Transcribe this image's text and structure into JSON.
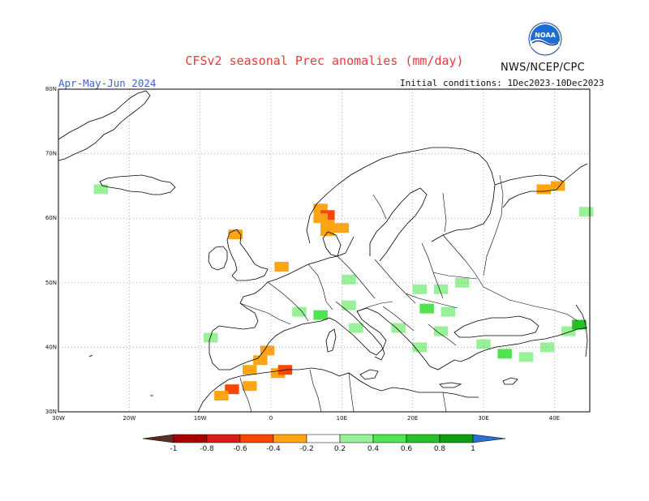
{
  "header": {
    "title": "CFSv2 seasonal Prec anomalies (mm/day)",
    "agency": "NWS/NCEP/CPC",
    "logo_text": "NOAA",
    "season": "Apr-May-Jun 2024",
    "initial_conditions": "Initial conditions: 1Dec2023-10Dec2023"
  },
  "axes": {
    "lat_labels": [
      {
        "lat": 80,
        "label": "80N"
      },
      {
        "lat": 70,
        "label": "70N"
      },
      {
        "lat": 60,
        "label": "60N"
      },
      {
        "lat": 50,
        "label": "50N"
      },
      {
        "lat": 40,
        "label": "40N"
      },
      {
        "lat": 30,
        "label": "30N"
      }
    ],
    "lon_labels": [
      {
        "lon": -30,
        "label": "30W"
      },
      {
        "lon": -20,
        "label": "20W"
      },
      {
        "lon": -10,
        "label": "10W"
      },
      {
        "lon": 0,
        "label": "0"
      },
      {
        "lon": 10,
        "label": "10E"
      },
      {
        "lon": 20,
        "label": "20E"
      },
      {
        "lon": 30,
        "label": "30E"
      },
      {
        "lon": 40,
        "label": "40E"
      }
    ],
    "lon_range": [
      -30,
      45
    ],
    "lat_range": [
      30,
      80
    ],
    "grid": "dotted"
  },
  "colorbar": {
    "labels": [
      "-1",
      "-0.8",
      "-0.6",
      "-0.4",
      "-0.2",
      "0.2",
      "0.4",
      "0.6",
      "0.8",
      "1"
    ],
    "colors": [
      "#5a2e22",
      "#a80000",
      "#d61c1c",
      "#ff4500",
      "#ffa514",
      "#ffffff",
      "#98f098",
      "#50e450",
      "#28c028",
      "#0f9e0f",
      "#2a6ed8"
    ]
  },
  "chart_data": {
    "type": "heatmap",
    "title": "CFSv2 seasonal Prec anomalies (mm/day)",
    "subtitle": "Apr-May-Jun 2024",
    "units": "mm/day",
    "cells": [
      {
        "lon": 7,
        "lat": 61.5,
        "value": -0.3
      },
      {
        "lon": 8,
        "lat": 60.5,
        "value": -0.5
      },
      {
        "lon": 7,
        "lat": 60,
        "value": -0.3
      },
      {
        "lon": 8,
        "lat": 59,
        "value": -0.3
      },
      {
        "lon": 8,
        "lat": 58,
        "value": -0.3
      },
      {
        "lon": 10,
        "lat": 58.5,
        "value": -0.3
      },
      {
        "lon": -5,
        "lat": 57.5,
        "value": -0.3
      },
      {
        "lon": 1.5,
        "lat": 52.5,
        "value": -0.3
      },
      {
        "lon": 38.5,
        "lat": 64.5,
        "value": -0.3
      },
      {
        "lon": 40.5,
        "lat": 65,
        "value": -0.3
      },
      {
        "lon": -0.5,
        "lat": 39.5,
        "value": -0.3
      },
      {
        "lon": -1.5,
        "lat": 38,
        "value": -0.3
      },
      {
        "lon": -3,
        "lat": 36.5,
        "value": -0.3
      },
      {
        "lon": 1,
        "lat": 36,
        "value": -0.3
      },
      {
        "lon": 2,
        "lat": 36.5,
        "value": -0.5
      },
      {
        "lon": -5.5,
        "lat": 33.5,
        "value": -0.5
      },
      {
        "lon": -7,
        "lat": 32.5,
        "value": -0.3
      },
      {
        "lon": -3,
        "lat": 34,
        "value": -0.3
      },
      {
        "lon": -24,
        "lat": 64.5,
        "value": 0.3
      },
      {
        "lon": -8.5,
        "lat": 41.5,
        "value": 0.3
      },
      {
        "lon": 11,
        "lat": 50.5,
        "value": 0.3
      },
      {
        "lon": 4,
        "lat": 45.5,
        "value": 0.3
      },
      {
        "lon": 7,
        "lat": 45,
        "value": 0.4
      },
      {
        "lon": 11,
        "lat": 46.5,
        "value": 0.3
      },
      {
        "lon": 12,
        "lat": 43,
        "value": 0.3
      },
      {
        "lon": 18,
        "lat": 43,
        "value": 0.3
      },
      {
        "lon": 21,
        "lat": 49,
        "value": 0.3
      },
      {
        "lon": 24,
        "lat": 49,
        "value": 0.3
      },
      {
        "lon": 27,
        "lat": 50,
        "value": 0.3
      },
      {
        "lon": 22,
        "lat": 46,
        "value": 0.4
      },
      {
        "lon": 25,
        "lat": 45.5,
        "value": 0.3
      },
      {
        "lon": 24,
        "lat": 42.5,
        "value": 0.3
      },
      {
        "lon": 21,
        "lat": 40,
        "value": 0.3
      },
      {
        "lon": 30,
        "lat": 40.5,
        "value": 0.3
      },
      {
        "lon": 33,
        "lat": 39,
        "value": 0.4
      },
      {
        "lon": 36,
        "lat": 38.5,
        "value": 0.3
      },
      {
        "lon": 39,
        "lat": 40,
        "value": 0.3
      },
      {
        "lon": 42,
        "lat": 42.5,
        "value": 0.3
      },
      {
        "lon": 43.5,
        "lat": 43.5,
        "value": 0.6
      },
      {
        "lon": 44.5,
        "lat": 61,
        "value": 0.3
      }
    ]
  }
}
